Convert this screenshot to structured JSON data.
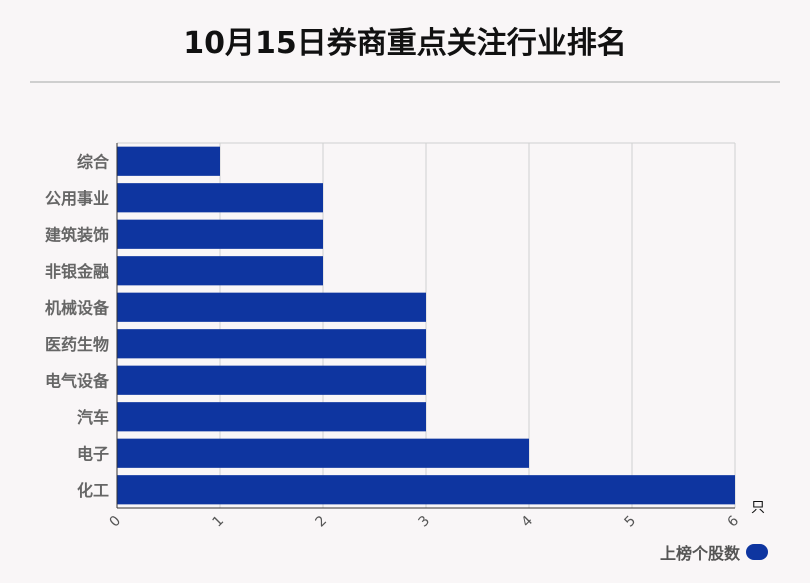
{
  "title": "10月15日券商重点关注行业排名",
  "chart_data": {
    "type": "bar",
    "orientation": "horizontal",
    "categories": [
      "综合",
      "公用事业",
      "建筑装饰",
      "非银金融",
      "机械设备",
      "医药生物",
      "电气设备",
      "汽车",
      "电子",
      "化工"
    ],
    "series": [
      {
        "name": "上榜个股数",
        "values": [
          1,
          2,
          2,
          2,
          3,
          3,
          3,
          3,
          4,
          6
        ]
      }
    ],
    "xlim": [
      0,
      6
    ],
    "xticks": [
      "0",
      "1",
      "2",
      "3",
      "4",
      "5",
      "6"
    ],
    "xunit": "只",
    "grid": true,
    "legend_position": "bottom-right",
    "bar_color": "#0e35a0"
  }
}
